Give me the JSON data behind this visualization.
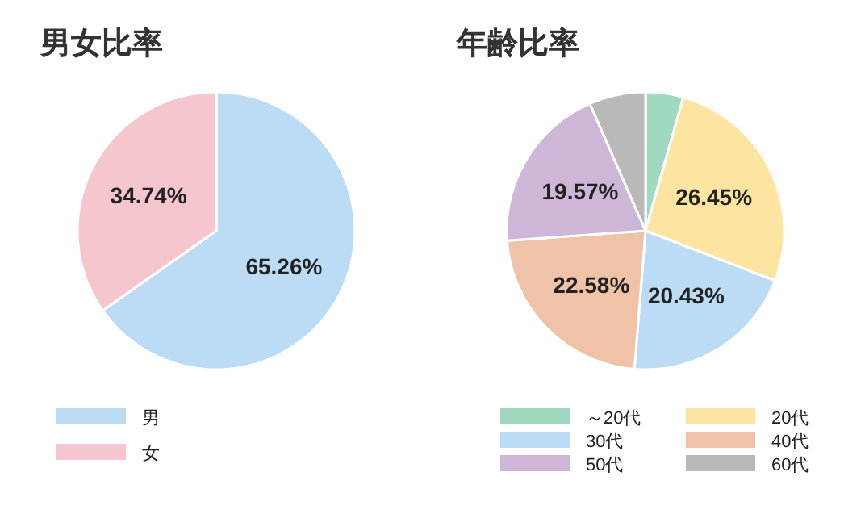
{
  "chart_data": [
    {
      "type": "pie",
      "title": "男女比率",
      "categories": [
        "男",
        "女"
      ],
      "values": [
        65.26,
        34.74
      ],
      "colors": [
        "#bcdcf5",
        "#f6c6cf"
      ],
      "value_labels": [
        "65.26%",
        "34.74%"
      ],
      "legend": "bottom"
    },
    {
      "type": "pie",
      "title": "年齢比率",
      "categories": [
        "～20代",
        "20代",
        "30代",
        "40代",
        "50代",
        "60代"
      ],
      "values": [
        4.4,
        26.45,
        20.43,
        22.58,
        19.57,
        6.57
      ],
      "colors": [
        "#a0d8c0",
        "#fde4a0",
        "#bcdcf5",
        "#f0c2a8",
        "#cdb6d8",
        "#b9b9b9"
      ],
      "value_labels": [
        null,
        "26.45%",
        "20.43%",
        "22.58%",
        "19.57%",
        null
      ],
      "legend": "bottom"
    }
  ]
}
